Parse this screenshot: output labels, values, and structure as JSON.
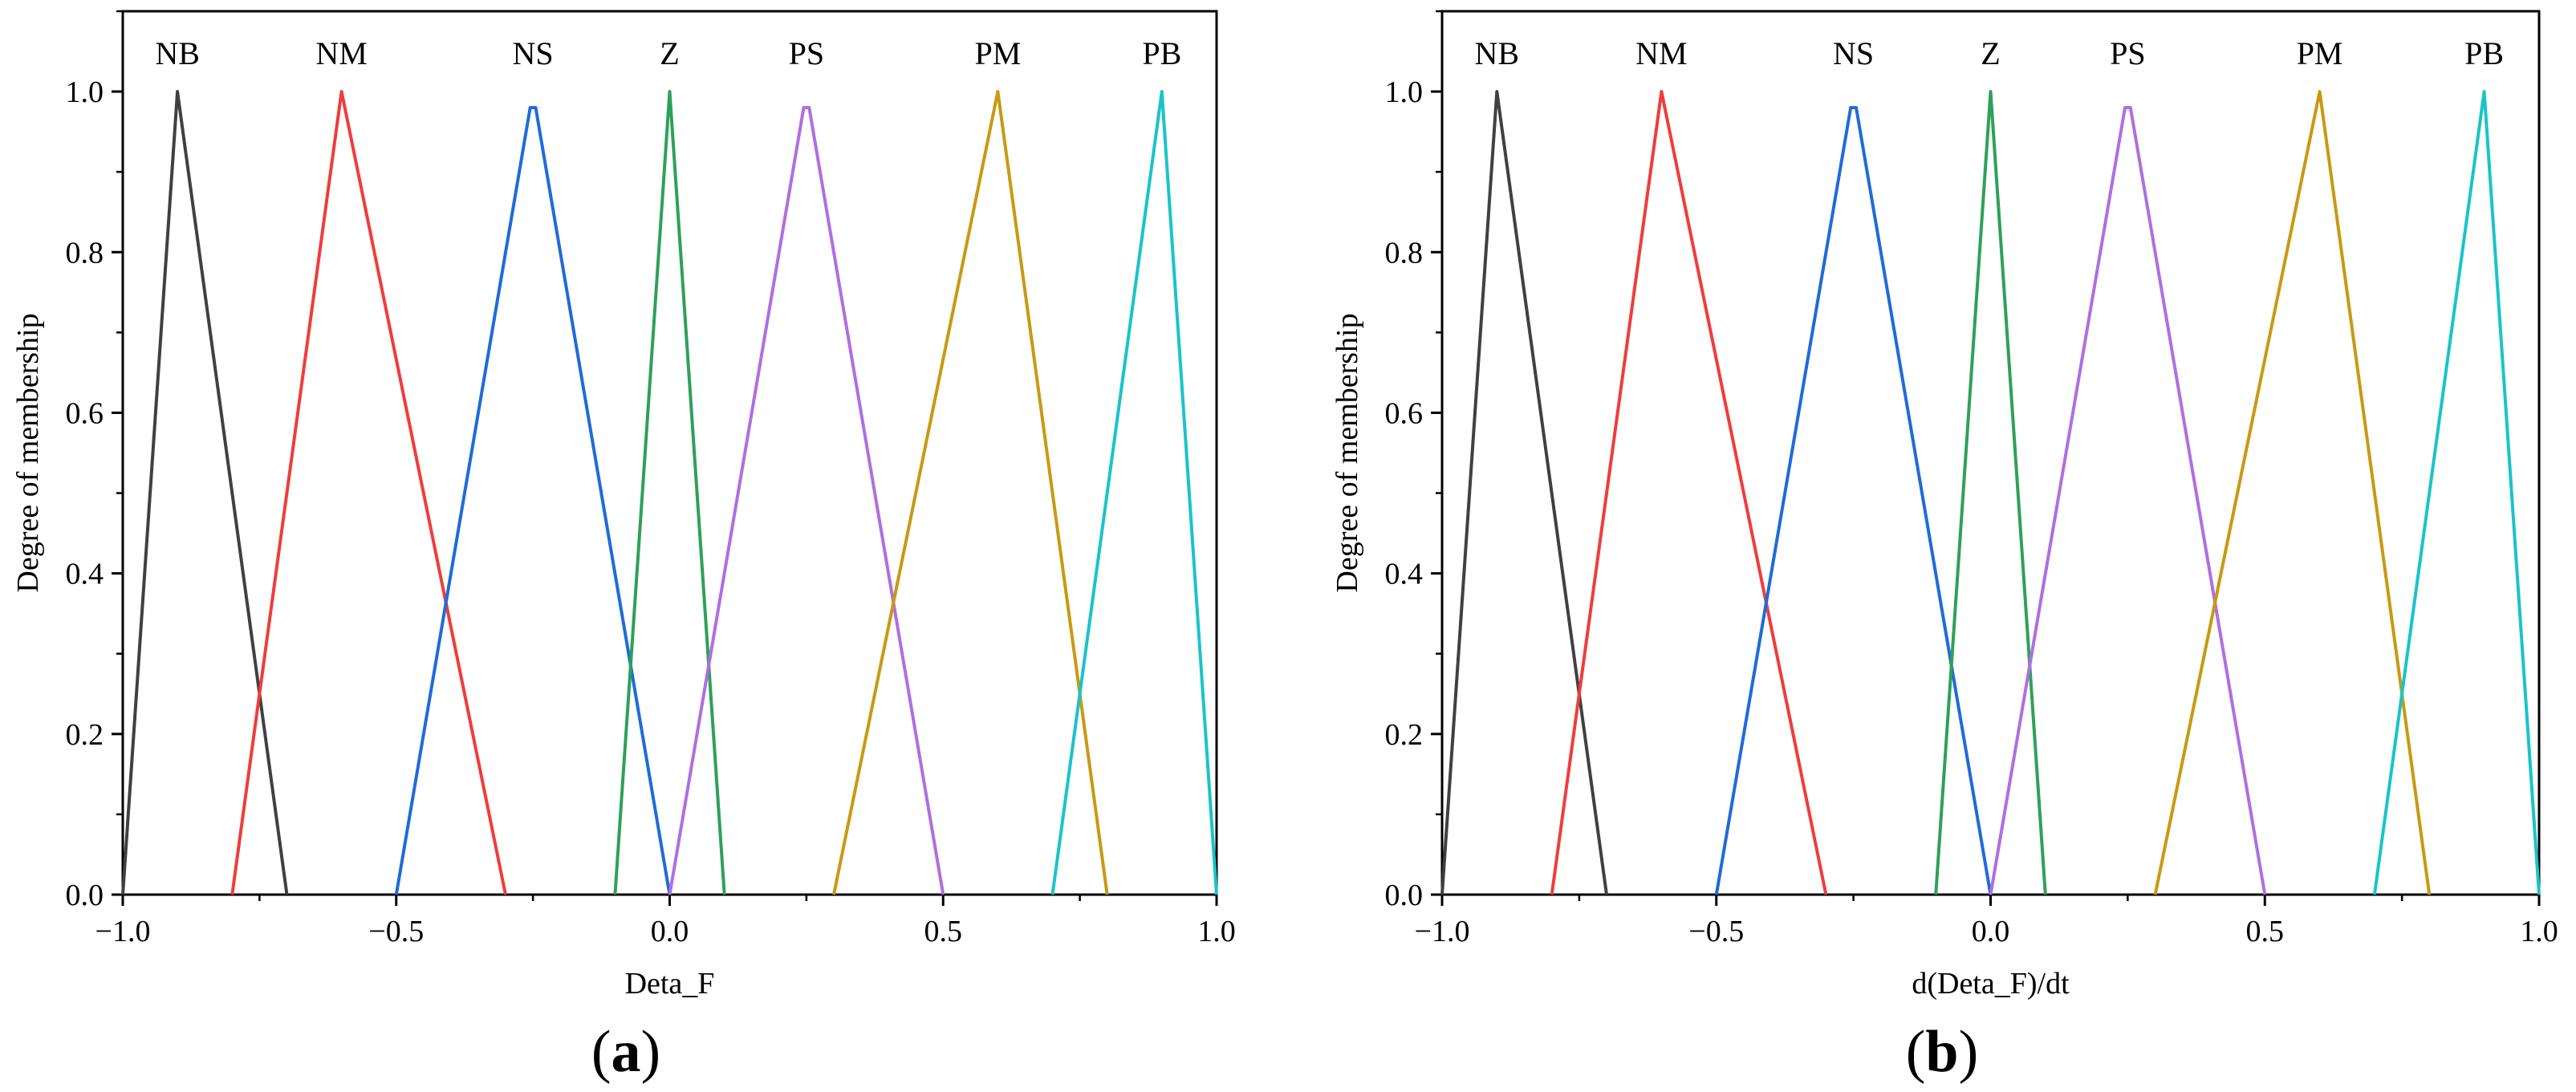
{
  "chart_data": [
    {
      "type": "line",
      "panel_label_open": "(",
      "panel_label_letter": "a",
      "panel_label_close": ")",
      "xlabel": "Deta_F",
      "ylabel": "Degree of membership",
      "xlim": [
        -1.0,
        1.0
      ],
      "ylim": [
        0.0,
        1.1
      ],
      "xticks": [
        -1.0,
        -0.5,
        0.0,
        0.5,
        1.0
      ],
      "xtick_labels": [
        "−1.0",
        "−0.5",
        "0.0",
        "0.5",
        "1.0"
      ],
      "yticks": [
        0.0,
        0.2,
        0.4,
        0.6,
        0.8,
        1.0
      ],
      "ytick_labels": [
        "0.0",
        "0.2",
        "0.4",
        "0.6",
        "0.8",
        "1.0"
      ],
      "series": [
        {
          "name": "NB",
          "color": "#404040",
          "x": [
            -1.0,
            -0.9,
            -0.7
          ],
          "y": [
            0.0,
            1.0,
            0.0
          ]
        },
        {
          "name": "NM",
          "color": "#f03c3c",
          "x": [
            -0.8,
            -0.6,
            -0.3
          ],
          "y": [
            0.0,
            1.0,
            0.0
          ]
        },
        {
          "name": "NS",
          "color": "#1f6bd9",
          "x": [
            -0.5,
            -0.255,
            -0.245,
            0.0
          ],
          "y": [
            0.0,
            0.98,
            0.98,
            0.0
          ]
        },
        {
          "name": "Z",
          "color": "#2ea05a",
          "x": [
            -0.1,
            0.0,
            0.1
          ],
          "y": [
            0.0,
            1.0,
            0.0
          ]
        },
        {
          "name": "PS",
          "color": "#b06ee0",
          "x": [
            0.0,
            0.245,
            0.255,
            0.5
          ],
          "y": [
            0.0,
            0.98,
            0.98,
            0.0
          ]
        },
        {
          "name": "PM",
          "color": "#c89a12",
          "x": [
            0.3,
            0.6,
            0.8
          ],
          "y": [
            0.0,
            1.0,
            0.0
          ]
        },
        {
          "name": "PB",
          "color": "#19c4c8",
          "x": [
            0.7,
            0.9,
            1.0
          ],
          "y": [
            0.0,
            1.0,
            0.0
          ]
        }
      ]
    },
    {
      "type": "line",
      "panel_label_open": "(",
      "panel_label_letter": "b",
      "panel_label_close": ")",
      "xlabel": "d(Deta_F)/dt",
      "ylabel": "Degree of membership",
      "xlim": [
        -1.0,
        1.0
      ],
      "ylim": [
        0.0,
        1.1
      ],
      "xticks": [
        -1.0,
        -0.5,
        0.0,
        0.5,
        1.0
      ],
      "xtick_labels": [
        "−1.0",
        "−0.5",
        "0.0",
        "0.5",
        "1.0"
      ],
      "yticks": [
        0.0,
        0.2,
        0.4,
        0.6,
        0.8,
        1.0
      ],
      "ytick_labels": [
        "0.0",
        "0.2",
        "0.4",
        "0.6",
        "0.8",
        "1.0"
      ],
      "series": [
        {
          "name": "NB",
          "color": "#404040",
          "x": [
            -1.0,
            -0.9,
            -0.7
          ],
          "y": [
            0.0,
            1.0,
            0.0
          ]
        },
        {
          "name": "NM",
          "color": "#f03c3c",
          "x": [
            -0.8,
            -0.6,
            -0.3
          ],
          "y": [
            0.0,
            1.0,
            0.0
          ]
        },
        {
          "name": "NS",
          "color": "#1f6bd9",
          "x": [
            -0.5,
            -0.255,
            -0.245,
            0.0
          ],
          "y": [
            0.0,
            0.98,
            0.98,
            0.0
          ]
        },
        {
          "name": "Z",
          "color": "#2ea05a",
          "x": [
            -0.1,
            0.0,
            0.1
          ],
          "y": [
            0.0,
            1.0,
            0.0
          ]
        },
        {
          "name": "PS",
          "color": "#b06ee0",
          "x": [
            0.0,
            0.245,
            0.255,
            0.5
          ],
          "y": [
            0.0,
            0.98,
            0.98,
            0.0
          ]
        },
        {
          "name": "PM",
          "color": "#c89a12",
          "x": [
            0.3,
            0.6,
            0.8
          ],
          "y": [
            0.0,
            1.0,
            0.0
          ]
        },
        {
          "name": "PB",
          "color": "#19c4c8",
          "x": [
            0.7,
            0.9,
            1.0
          ],
          "y": [
            0.0,
            1.0,
            0.0
          ]
        }
      ]
    }
  ]
}
